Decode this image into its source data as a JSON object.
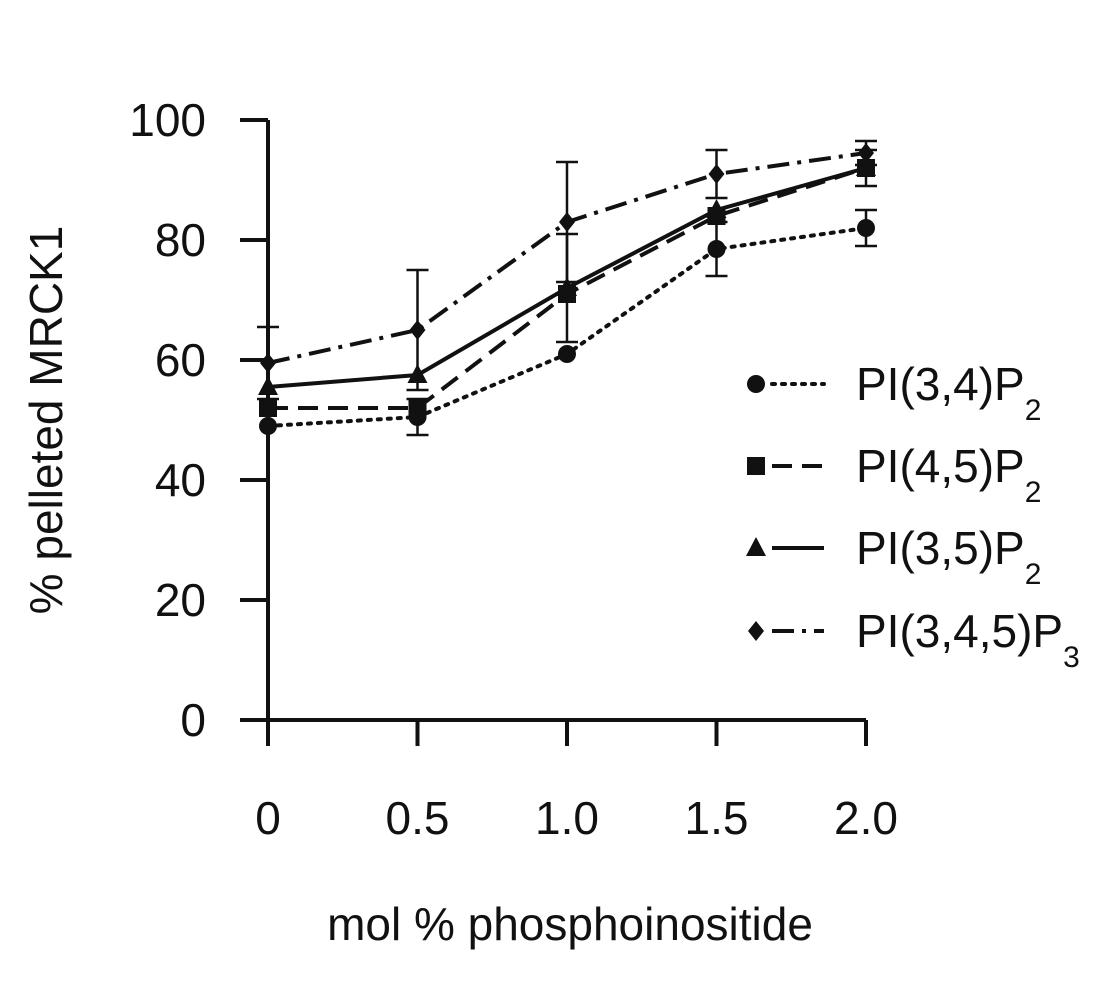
{
  "chart_data": {
    "type": "line",
    "title": "",
    "xlabel": "mol % phosphoinositide",
    "ylabel": "% pelleted MRCK1",
    "x": [
      0,
      0.5,
      1.0,
      1.5,
      2.0
    ],
    "x_tick_labels": [
      "0",
      "0.5",
      "1.0",
      "1.5",
      "2.0"
    ],
    "y_ticks": [
      0,
      20,
      40,
      60,
      80,
      100
    ],
    "y_tick_labels": [
      "0",
      "20",
      "40",
      "60",
      "80",
      "100"
    ],
    "xlim": [
      0,
      2.0
    ],
    "ylim": [
      0,
      100
    ],
    "grid": false,
    "legend_position": "right",
    "series": [
      {
        "name": "PI(3,4)P",
        "subscript": "2",
        "marker": "circle",
        "dash": "dotted",
        "values": [
          49,
          50.5,
          61,
          78.5,
          82
        ],
        "err": [
          0,
          3,
          0,
          4.5,
          3
        ]
      },
      {
        "name": "PI(4,5)P",
        "subscript": "2",
        "marker": "square",
        "dash": "dashed",
        "values": [
          52,
          52,
          71,
          84,
          92
        ],
        "err": [
          0,
          0,
          0,
          0,
          3
        ]
      },
      {
        "name": "PI(3,5)P",
        "subscript": "2",
        "marker": "triangle",
        "dash": "solid",
        "values": [
          55.5,
          57.5,
          72,
          85,
          92
        ],
        "err": [
          0,
          0,
          9,
          0,
          0
        ]
      },
      {
        "name": "PI(3,4,5)P",
        "subscript": "3",
        "marker": "diamond",
        "dash": "dashdot",
        "values": [
          59.5,
          65,
          83,
          91,
          94.5
        ],
        "err": [
          6,
          10,
          10,
          4,
          2
        ]
      }
    ]
  }
}
